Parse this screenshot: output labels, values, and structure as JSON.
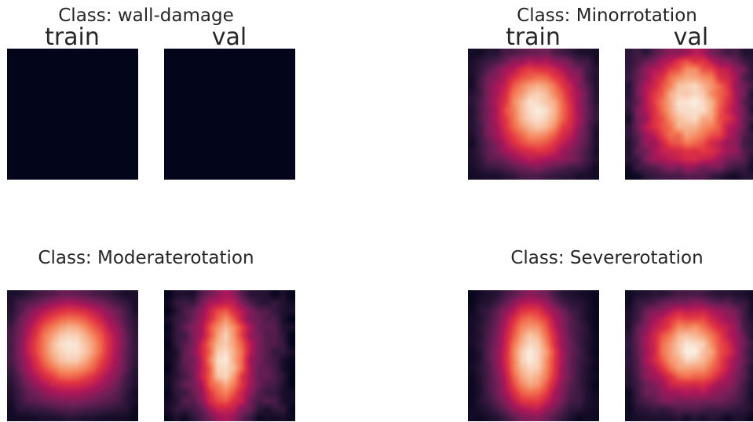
{
  "chart_data": [
    {
      "type": "heatmap",
      "title": "Class: wall-damage",
      "panels": [
        {
          "label": "train",
          "grid": "uniform",
          "peak": 0.0,
          "cx": 0.5,
          "cy": 0.5,
          "sx": 0.3,
          "sy": 0.3
        },
        {
          "label": "val",
          "grid": "uniform",
          "peak": 0.0,
          "cx": 0.5,
          "cy": 0.5,
          "sx": 0.3,
          "sy": 0.3
        }
      ]
    },
    {
      "type": "heatmap",
      "title": "Class: Minorrotation",
      "panels": [
        {
          "label": "train",
          "grid": "blob",
          "peak": 1.0,
          "cx": 0.52,
          "cy": 0.46,
          "sx": 0.26,
          "sy": 0.33,
          "floor": 0.18,
          "noise": 0.06
        },
        {
          "label": "val",
          "grid": "blob",
          "peak": 1.0,
          "cx": 0.5,
          "cy": 0.42,
          "sx": 0.27,
          "sy": 0.36,
          "floor": 0.25,
          "noise": 0.12
        }
      ]
    },
    {
      "type": "heatmap",
      "title": "Class: Moderaterotation",
      "panels": [
        {
          "label": "",
          "grid": "blob",
          "peak": 1.0,
          "cx": 0.48,
          "cy": 0.43,
          "sx": 0.3,
          "sy": 0.3,
          "floor": 0.15,
          "noise": 0.03
        },
        {
          "label": "",
          "grid": "blob",
          "peak": 1.0,
          "cx": 0.46,
          "cy": 0.5,
          "sx": 0.16,
          "sy": 0.42,
          "floor": 0.18,
          "noise": 0.1
        }
      ]
    },
    {
      "type": "heatmap",
      "title": "Class: Severerotation",
      "panels": [
        {
          "label": "",
          "grid": "blob",
          "peak": 1.0,
          "cx": 0.48,
          "cy": 0.5,
          "sx": 0.2,
          "sy": 0.4,
          "floor": 0.12,
          "noise": 0.04
        },
        {
          "label": "",
          "grid": "blob",
          "peak": 1.0,
          "cx": 0.5,
          "cy": 0.45,
          "sx": 0.27,
          "sy": 0.27,
          "floor": 0.2,
          "noise": 0.07
        }
      ]
    }
  ],
  "colors": {
    "colormap": "rocket",
    "stops": [
      "#03051a",
      "#35193e",
      "#701f57",
      "#ad1759",
      "#e13342",
      "#f37651",
      "#f6b48f",
      "#faebdd"
    ]
  }
}
